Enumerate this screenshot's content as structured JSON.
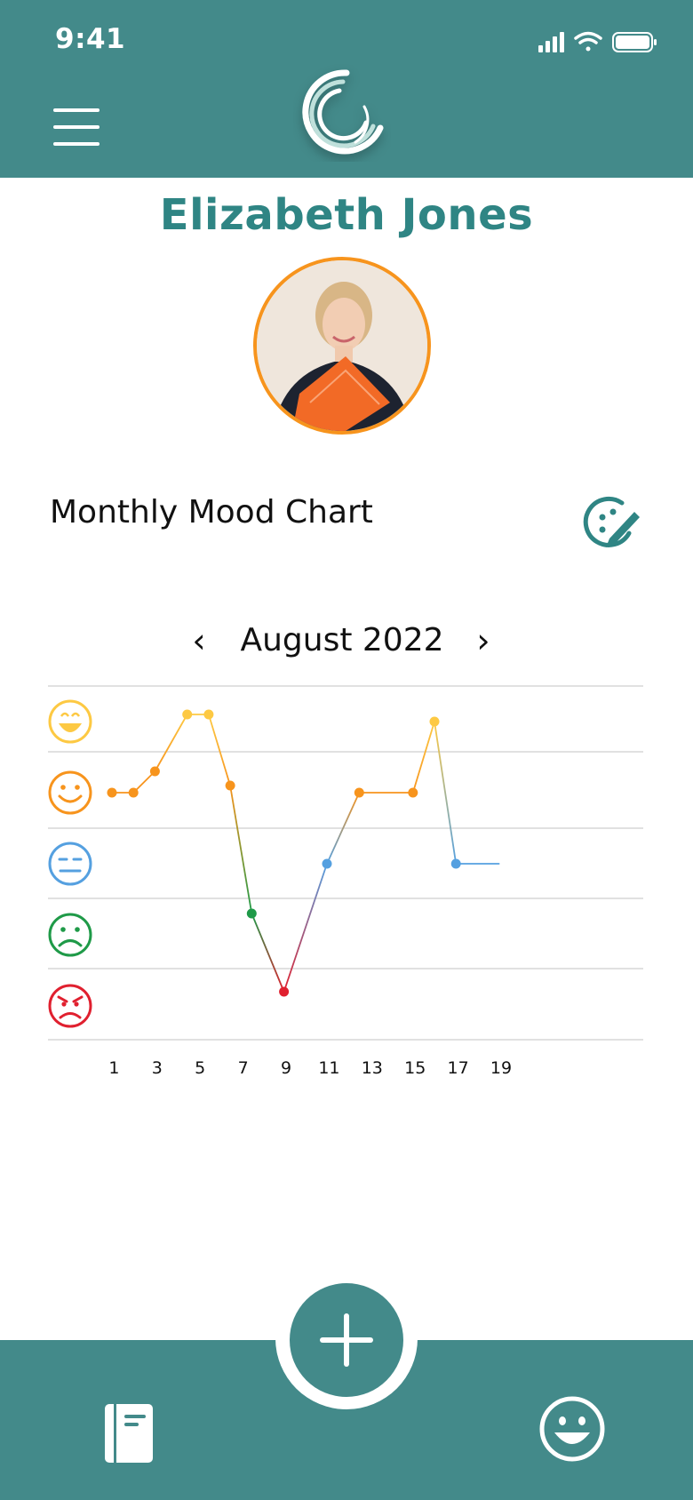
{
  "status_bar": {
    "time": "9:41"
  },
  "header": {
    "menu_icon": "hamburger-icon",
    "logo_icon": "swirl-logo"
  },
  "profile": {
    "name": "Elizabeth Jones",
    "avatar_icon": "profile-photo"
  },
  "section": {
    "title": "Monthly Mood Chart",
    "edit_icon": "mood-edit-icon"
  },
  "month_nav": {
    "label": "August 2022",
    "prev": "‹",
    "next": "›"
  },
  "colors": {
    "brand": "#438a8a",
    "name_text": "#2f8584",
    "ecstatic": "#fdc943",
    "happy": "#f7941d",
    "neutral": "#55a0e0",
    "sad": "#1f9a48",
    "angry": "#e0202f"
  },
  "chart_data": {
    "type": "line",
    "title": "",
    "xlabel": "",
    "ylabel": "",
    "x_ticks": [
      "1",
      "3",
      "5",
      "7",
      "9",
      "11",
      "13",
      "15",
      "17",
      "19"
    ],
    "y_levels": [
      "angry",
      "sad",
      "neutral",
      "happy",
      "ecstatic"
    ],
    "ylim": [
      1,
      5
    ],
    "xlim": [
      0,
      20
    ],
    "grid": true,
    "series": [
      {
        "x": [
          1,
          2,
          3,
          4.5,
          5.5,
          6.5,
          7.5,
          9,
          11,
          12.5,
          15,
          16,
          17,
          19
        ],
        "y": [
          4,
          4,
          4.3,
          5.1,
          5.1,
          4.1,
          2.3,
          1.2,
          3.0,
          4.0,
          4.0,
          5.0,
          3.0,
          3.0
        ]
      }
    ]
  },
  "bottom_nav": {
    "journal_icon": "journal-icon",
    "add_icon": "plus-icon",
    "mood_icon": "smile-icon"
  }
}
